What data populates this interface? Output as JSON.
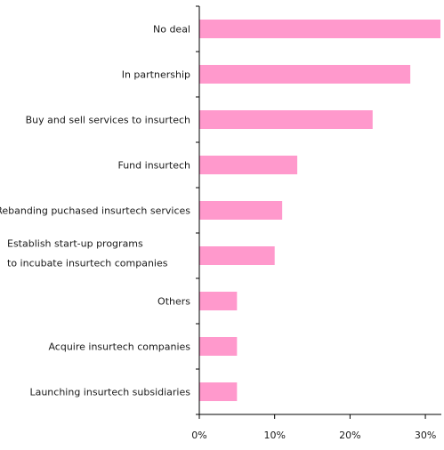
{
  "chart_data": {
    "type": "bar",
    "orientation": "horizontal",
    "categories": [
      [
        "No deal"
      ],
      [
        "In partnership"
      ],
      [
        "Buy and sell services to insurtech"
      ],
      [
        "Fund insurtech"
      ],
      [
        "Rebanding puchased insurtech services"
      ],
      [
        "Establish start-up programs",
        "to incubate insurtech  companies"
      ],
      [
        "Others"
      ],
      [
        "Acquire insurtech companies"
      ],
      [
        "Launching insurtech subsidiaries"
      ]
    ],
    "values": [
      32,
      28,
      23,
      13,
      11,
      10,
      5,
      5,
      5
    ],
    "xlim": [
      0,
      32
    ],
    "xticks": [
      0,
      10,
      20,
      30
    ],
    "xtick_labels": [
      "0%",
      "10%",
      "20%",
      "30%"
    ],
    "bar_color": "#ff99cc",
    "grid": false,
    "title": "",
    "xlabel": "",
    "ylabel": ""
  }
}
